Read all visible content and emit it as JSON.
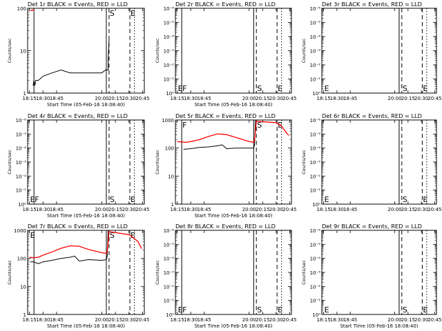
{
  "chart_data": [
    {
      "type": "line",
      "title": "Det 1r BLACK = Events, RED = LLD",
      "xlabel": "Start Time (05-Feb-16 18:08:40)",
      "ylabel": "Counts/sec",
      "y_scale": "log",
      "ylim": [
        1,
        100
      ],
      "y_ticks": [
        "1",
        "10",
        "100"
      ],
      "x_ticks": [
        "18:15",
        "18:30",
        "18:45",
        "20:00",
        "20:15",
        "20:30",
        "20:45"
      ],
      "markers": [
        {
          "label": "",
          "x": "18:20",
          "style": "solid"
        },
        {
          "label": "",
          "x": "20:05",
          "style": "solid"
        },
        {
          "label": "S",
          "x": "20:08",
          "style": "dashed"
        },
        {
          "label": "E",
          "x": "20:31",
          "style": "dashed"
        },
        {
          "label": "",
          "x": "20:36",
          "style": "dotted"
        }
      ],
      "series": [
        {
          "color": "#000000",
          "points": [
            [
              "18:19",
              1.5
            ],
            [
              "18:20",
              2
            ],
            [
              "18:21",
              1.5
            ],
            [
              "18:22",
              2
            ],
            [
              "18:25",
              2
            ],
            [
              "18:30",
              2.5
            ],
            [
              "18:40",
              3
            ],
            [
              "18:50",
              3.5
            ],
            [
              "19:00",
              3
            ],
            [
              "20:00",
              3
            ],
            [
              "20:04",
              3.5
            ],
            [
              "20:07",
              3.5
            ],
            [
              "20:07",
              6
            ],
            [
              "20:08",
              18
            ]
          ]
        },
        {
          "color": "#ff0000",
          "points": [
            [
              "18:16",
              90
            ],
            [
              "18:18",
              88
            ],
            [
              "18:19",
              92
            ],
            [
              "18:20",
              92
            ]
          ]
        }
      ]
    },
    {
      "type": "line",
      "title": "Det 2r BLACK = Events, RED = LLD",
      "xlabel": "Start Time (05-Feb-16 18:08:40)",
      "ylabel": "Counts/sec",
      "y_scale": "log",
      "ylim": [
        1,
        1e-06
      ],
      "y_ticks": [
        "10⁰",
        "10⁻¹",
        "10⁻²",
        "10⁻³",
        "10⁻⁴",
        "10⁻⁵",
        "10⁻⁶"
      ],
      "x_ticks": [
        "18:15",
        "18:30",
        "18:45",
        "20:00",
        "20:15",
        "20:30",
        "20:45"
      ],
      "markers": [
        {
          "label": "E",
          "x": "18:15",
          "style": "none"
        },
        {
          "label": "F",
          "x": "18:20",
          "style": "solid"
        },
        {
          "label": "",
          "x": "20:05",
          "style": "solid"
        },
        {
          "label": "S",
          "x": "20:08",
          "style": "dashed"
        },
        {
          "label": "E",
          "x": "20:31",
          "style": "dashed"
        },
        {
          "label": "",
          "x": "20:36",
          "style": "dotted"
        }
      ],
      "series": []
    },
    {
      "type": "line",
      "title": "Det 3r BLACK = Events, RED = LLD",
      "xlabel": "",
      "ylabel": "Counts/sec",
      "y_scale": "log",
      "ylim": [
        1,
        1e-06
      ],
      "y_ticks": [
        "10⁰",
        "10⁻¹",
        "10⁻²",
        "10⁻³",
        "10⁻⁴",
        "10⁻⁵",
        "10⁻⁶"
      ],
      "x_ticks": [
        "18:15",
        "18:30",
        "18:45",
        "20:00",
        "20:15",
        "20:30",
        "20:45"
      ],
      "markers": [
        {
          "label": "E",
          "x": "18:15",
          "style": "none"
        },
        {
          "label": "",
          "x": "20:05",
          "style": "solid"
        },
        {
          "label": "S",
          "x": "20:08",
          "style": "dashed"
        },
        {
          "label": "E",
          "x": "20:31",
          "style": "dashed"
        },
        {
          "label": "",
          "x": "20:36",
          "style": "dotted"
        }
      ],
      "series": []
    },
    {
      "type": "line",
      "title": "Det 4r BLACK = Events, RED = LLD",
      "xlabel": "Start Time (05-Feb-16 18:08:40)",
      "ylabel": "Counts/sec",
      "y_scale": "log",
      "ylim": [
        1,
        1e-06
      ],
      "y_ticks": [
        "10⁰",
        "10⁻¹",
        "10⁻²",
        "10⁻³",
        "10⁻⁴",
        "10⁻⁵",
        "10⁻⁶"
      ],
      "x_ticks": [
        "18:15",
        "18:30",
        "18:45",
        "20:00",
        "20:15",
        "20:30",
        "20:45"
      ],
      "markers": [
        {
          "label": "E",
          "x": "18:15",
          "style": "none"
        },
        {
          "label": "F",
          "x": "18:20",
          "style": "solid"
        },
        {
          "label": "",
          "x": "20:05",
          "style": "solid"
        },
        {
          "label": "S",
          "x": "20:08",
          "style": "dashed"
        },
        {
          "label": "E",
          "x": "20:31",
          "style": "dashed"
        },
        {
          "label": "",
          "x": "20:36",
          "style": "dotted"
        }
      ],
      "series": []
    },
    {
      "type": "line",
      "title": "Det 5r BLACK = Events, RED = LLD",
      "xlabel": "Start Time (05-Feb-16 18:08:40)",
      "ylabel": "Counts/sec",
      "y_scale": "log",
      "ylim": [
        1,
        1000
      ],
      "y_ticks": [
        "1",
        "10",
        "100",
        "1000"
      ],
      "x_ticks": [
        "18:15",
        "18:30",
        "18:45",
        "20:00",
        "20:15",
        "20:30",
        "20:45"
      ],
      "markers": [
        {
          "label": "F",
          "x": "18:20",
          "style": "solid"
        },
        {
          "label": "",
          "x": "20:05",
          "style": "solid"
        },
        {
          "label": "S",
          "x": "20:08",
          "style": "dashed"
        },
        {
          "label": "E",
          "x": "20:31",
          "style": "dashed"
        },
        {
          "label": "",
          "x": "20:36",
          "style": "dotted"
        }
      ],
      "series": [
        {
          "color": "#000000",
          "points": [
            [
              "18:22",
              90
            ],
            [
              "18:30",
              95
            ],
            [
              "18:40",
              105
            ],
            [
              "18:50",
              110
            ],
            [
              "19:00",
              120
            ],
            [
              "19:05",
              130
            ],
            [
              "19:10",
              95
            ],
            [
              "19:20",
              100
            ],
            [
              "20:00",
              100
            ],
            [
              "20:05",
              100
            ],
            [
              "20:06",
              130
            ],
            [
              "20:07",
              1000
            ]
          ]
        },
        {
          "color": "#ff0000",
          "points": [
            [
              "18:15",
              170
            ],
            [
              "18:20",
              165
            ],
            [
              "18:25",
              160
            ],
            [
              "18:30",
              170
            ],
            [
              "18:40",
              200
            ],
            [
              "18:50",
              260
            ],
            [
              "19:00",
              320
            ],
            [
              "19:10",
              300
            ],
            [
              "19:20",
              240
            ],
            [
              "20:00",
              170
            ],
            [
              "20:05",
              160
            ],
            [
              "20:06",
              200
            ],
            [
              "20:08",
              900
            ],
            [
              "20:30",
              800
            ],
            [
              "20:33",
              700
            ],
            [
              "20:36",
              600
            ],
            [
              "20:40",
              400
            ],
            [
              "20:44",
              280
            ]
          ]
        }
      ]
    },
    {
      "type": "line",
      "title": "Det 6r BLACK = Events, RED = LLD",
      "xlabel": "",
      "ylabel": "Counts/sec",
      "y_scale": "log",
      "ylim": [
        1,
        1e-06
      ],
      "y_ticks": [
        "10⁰",
        "10⁻¹",
        "10⁻²",
        "10⁻³",
        "10⁻⁴",
        "10⁻⁵",
        "10⁻⁶"
      ],
      "x_ticks": [
        "18:15",
        "18:30",
        "18:45",
        "20:00",
        "20:15",
        "20:30",
        "20:45"
      ],
      "markers": [
        {
          "label": "E",
          "x": "18:15",
          "style": "none"
        },
        {
          "label": "",
          "x": "20:05",
          "style": "solid"
        },
        {
          "label": "S",
          "x": "20:08",
          "style": "dashed"
        },
        {
          "label": "E",
          "x": "20:31",
          "style": "dashed"
        },
        {
          "label": "",
          "x": "20:36",
          "style": "dotted"
        }
      ],
      "series": []
    },
    {
      "type": "line",
      "title": "Det 7r BLACK = Events, RED = LLD",
      "xlabel": "Start Time (05-Feb-16 18:08:40)",
      "ylabel": "Counts/sec",
      "y_scale": "log",
      "ylim": [
        1,
        1000
      ],
      "y_ticks": [
        "1",
        "10",
        "100",
        "1000"
      ],
      "x_ticks": [
        "18:15",
        "18:30",
        "18:45",
        "20:00",
        "20:15",
        "20:30",
        "20:45"
      ],
      "markers": [
        {
          "label": "E",
          "x": "18:15",
          "style": "none"
        },
        {
          "label": "",
          "x": "18:20",
          "style": "solid"
        },
        {
          "label": "",
          "x": "20:05",
          "style": "solid"
        },
        {
          "label": "S",
          "x": "20:08",
          "style": "dashed"
        },
        {
          "label": "E",
          "x": "20:31",
          "style": "dashed"
        },
        {
          "label": "",
          "x": "20:36",
          "style": "dotted"
        }
      ],
      "series": [
        {
          "color": "#000000",
          "points": [
            [
              "18:16",
              75
            ],
            [
              "18:20",
              75
            ],
            [
              "18:22",
              70
            ],
            [
              "18:25",
              65
            ],
            [
              "18:30",
              75
            ],
            [
              "18:40",
              85
            ],
            [
              "18:50",
              100
            ],
            [
              "19:00",
              110
            ],
            [
              "19:05",
              120
            ],
            [
              "19:10",
              80
            ],
            [
              "19:20",
              90
            ],
            [
              "20:00",
              85
            ],
            [
              "20:05",
              90
            ],
            [
              "20:06",
              120
            ],
            [
              "20:07",
              1000
            ]
          ]
        },
        {
          "color": "#ff0000",
          "points": [
            [
              "18:15",
              110
            ],
            [
              "18:20",
              105
            ],
            [
              "18:25",
              110
            ],
            [
              "18:30",
              130
            ],
            [
              "18:40",
              170
            ],
            [
              "18:50",
              230
            ],
            [
              "19:00",
              280
            ],
            [
              "19:10",
              270
            ],
            [
              "19:20",
              210
            ],
            [
              "20:00",
              160
            ],
            [
              "20:05",
              150
            ],
            [
              "20:06",
              180
            ],
            [
              "20:08",
              900
            ],
            [
              "20:30",
              700
            ],
            [
              "20:33",
              600
            ],
            [
              "20:36",
              500
            ],
            [
              "20:40",
              400
            ],
            [
              "20:44",
              220
            ]
          ]
        }
      ]
    },
    {
      "type": "line",
      "title": "Det 8r BLACK = Events, RED = LLD",
      "xlabel": "Start Time (05-Feb-16 18:08:40)",
      "ylabel": "Counts/sec",
      "y_scale": "log",
      "ylim": [
        1,
        1e-06
      ],
      "y_ticks": [
        "10⁰",
        "10⁻¹",
        "10⁻²",
        "10⁻³",
        "10⁻⁴",
        "10⁻⁵",
        "10⁻⁶"
      ],
      "x_ticks": [
        "18:15",
        "18:30",
        "18:45",
        "20:00",
        "20:15",
        "20:30",
        "20:45"
      ],
      "markers": [
        {
          "label": "E",
          "x": "18:15",
          "style": "none"
        },
        {
          "label": "F",
          "x": "18:20",
          "style": "solid"
        },
        {
          "label": "",
          "x": "20:05",
          "style": "solid"
        },
        {
          "label": "S",
          "x": "20:08",
          "style": "dashed"
        },
        {
          "label": "E",
          "x": "20:31",
          "style": "dashed"
        },
        {
          "label": "",
          "x": "20:36",
          "style": "dotted"
        }
      ],
      "series": []
    },
    {
      "type": "line",
      "title": "Det 9r BLACK = Events, RED = LLD",
      "xlabel": "Start Time (05-Feb-16 18:08:40)",
      "ylabel": "Counts/sec",
      "y_scale": "log",
      "ylim": [
        1,
        1e-06
      ],
      "y_ticks": [
        "10⁰",
        "10⁻¹",
        "10⁻²",
        "10⁻³",
        "10⁻⁴",
        "10⁻⁵",
        "10⁻⁶"
      ],
      "x_ticks": [
        "18:15",
        "18:30",
        "18:45",
        "20:00",
        "20:15",
        "20:30",
        "20:45"
      ],
      "markers": [
        {
          "label": "E",
          "x": "18:15",
          "style": "none"
        },
        {
          "label": "",
          "x": "20:05",
          "style": "solid"
        },
        {
          "label": "S",
          "x": "20:08",
          "style": "dashed"
        },
        {
          "label": "E",
          "x": "20:31",
          "style": "dashed"
        },
        {
          "label": "",
          "x": "20:36",
          "style": "dotted"
        }
      ],
      "series": []
    }
  ]
}
